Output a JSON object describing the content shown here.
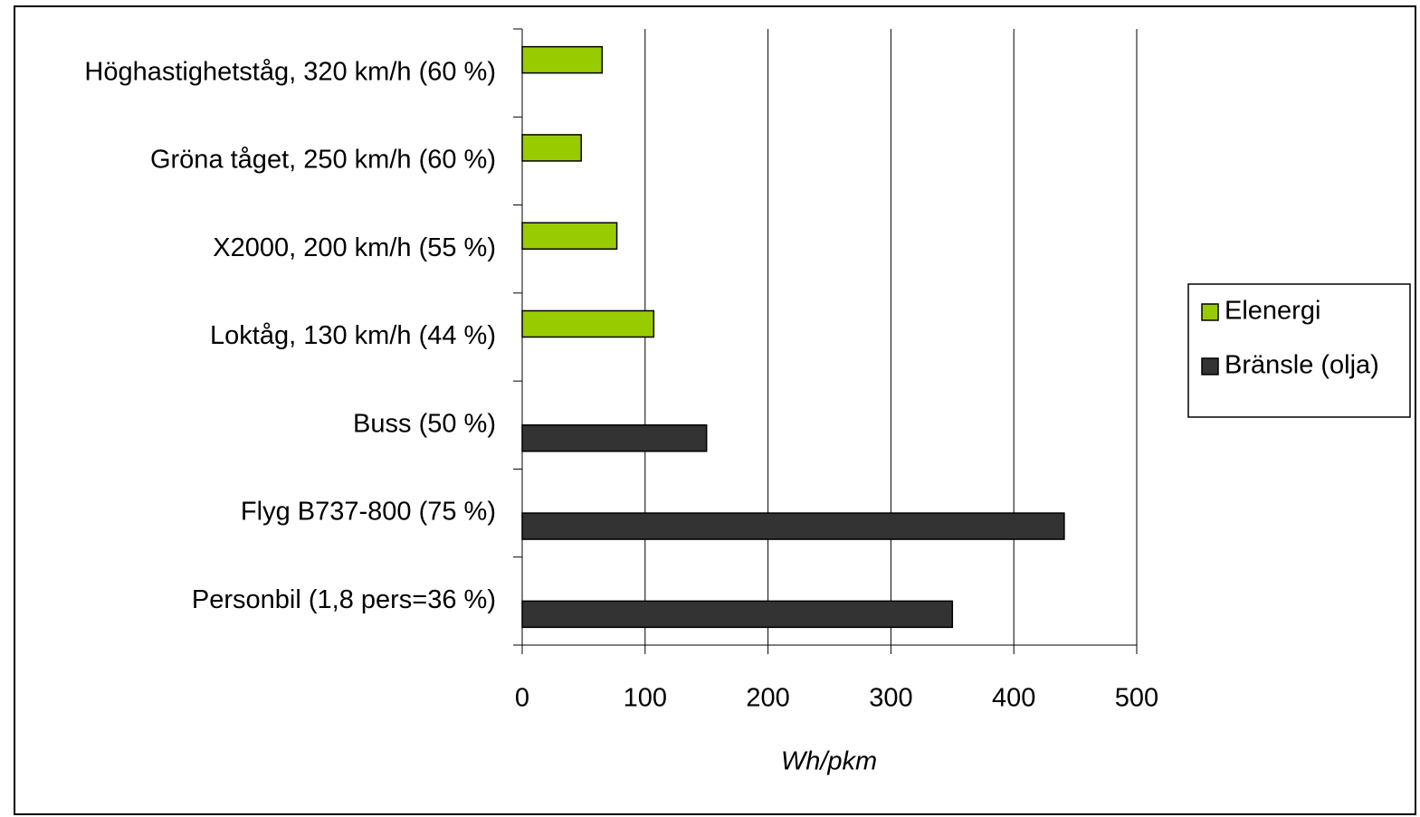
{
  "chart_data": {
    "type": "bar",
    "orientation": "horizontal",
    "categories": [
      "Höghastighetståg, 320 km/h (60 %)",
      "Gröna tåget, 250 km/h (60 %)",
      "X2000, 200 km/h (55 %)",
      "Loktåg, 130 km/h (44 %)",
      "Buss (50 %)",
      "Flyg B737-800 (75 %)",
      "Personbil (1,8 pers=36 %)"
    ],
    "series": [
      {
        "name": "Elenergi",
        "color": "#99cc00",
        "values": [
          65,
          48,
          77,
          107,
          null,
          null,
          null
        ]
      },
      {
        "name": "Bränsle (olja)",
        "color": "#333333",
        "values": [
          null,
          null,
          null,
          null,
          150,
          441,
          350
        ]
      }
    ],
    "xlabel": "Wh/pkm",
    "xlim": [
      0,
      500
    ],
    "xticks": [
      0,
      100,
      200,
      300,
      400,
      500
    ],
    "grid": true,
    "legend": "right"
  }
}
